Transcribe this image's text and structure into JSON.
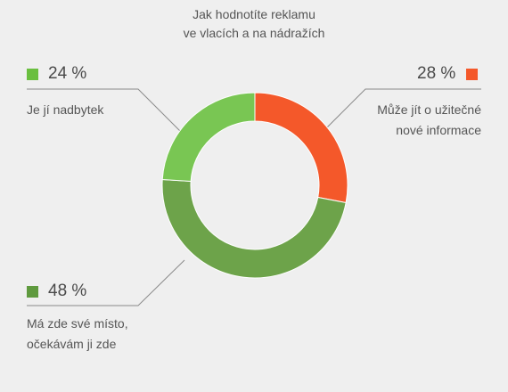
{
  "chart_data": {
    "type": "pie",
    "title_lines": [
      "Jak hodnotíte reklamu",
      "ve vlacích a na nádražích"
    ],
    "slices": [
      {
        "label_lines": [
          "Může jít o užitečné",
          "nové informace"
        ],
        "value": 28,
        "value_label": "28 %",
        "color": "#f4582a",
        "legend_color": "#f4582a"
      },
      {
        "label_lines": [
          "Má zde své místo,",
          "očekávám ji zde"
        ],
        "value": 48,
        "value_label": "48 %",
        "color": "#6da34a",
        "legend_color": "#5f9a3e"
      },
      {
        "label_lines": [
          "Je jí nadbytek"
        ],
        "value": 24,
        "value_label": "24 %",
        "color": "#79c653",
        "legend_color": "#6abf3f"
      }
    ],
    "donut": true,
    "start_angle": "top",
    "direction": "clockwise"
  }
}
